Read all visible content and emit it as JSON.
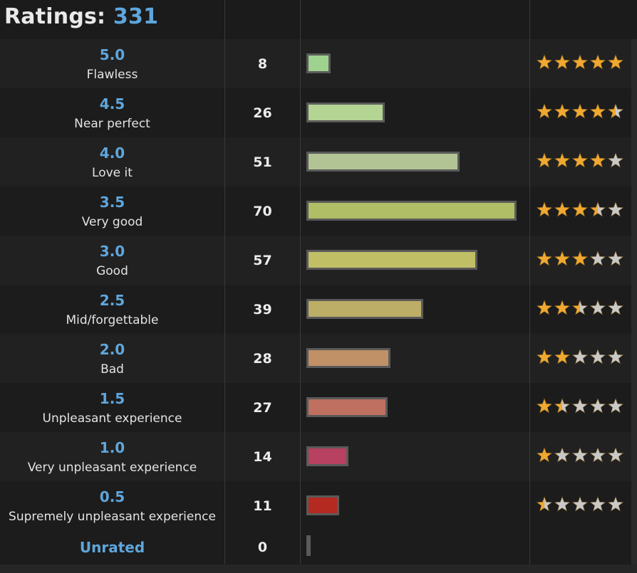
{
  "header": {
    "label": "Ratings:",
    "total": "331"
  },
  "rows": [
    {
      "rating": "5.0",
      "desc": "Flawless",
      "count": "8",
      "stars": 5.0,
      "color": "#9fd28f"
    },
    {
      "rating": "4.5",
      "desc": "Near perfect",
      "count": "26",
      "stars": 4.5,
      "color": "#b3d493"
    },
    {
      "rating": "4.0",
      "desc": "Love it",
      "count": "51",
      "stars": 4.0,
      "color": "#b2c493"
    },
    {
      "rating": "3.5",
      "desc": "Very good",
      "count": "70",
      "stars": 3.5,
      "color": "#b0be66"
    },
    {
      "rating": "3.0",
      "desc": "Good",
      "count": "57",
      "stars": 3.0,
      "color": "#c1bf66"
    },
    {
      "rating": "2.5",
      "desc": "Mid/forgettable",
      "count": "39",
      "stars": 2.5,
      "color": "#bcae66"
    },
    {
      "rating": "2.0",
      "desc": "Bad",
      "count": "28",
      "stars": 2.0,
      "color": "#c09066"
    },
    {
      "rating": "1.5",
      "desc": "Unpleasant experience",
      "count": "27",
      "stars": 1.5,
      "color": "#c07060"
    },
    {
      "rating": "1.0",
      "desc": "Very unpleasant experience",
      "count": "14",
      "stars": 1.0,
      "color": "#b84060"
    },
    {
      "rating": "0.5",
      "desc": "Supremely unpleasant experience",
      "count": "11",
      "stars": 0.5,
      "color": "#b52a20"
    }
  ],
  "unrated": {
    "label": "Unrated",
    "count": "0",
    "color": "#5a5a5a"
  },
  "chart_data": {
    "type": "bar",
    "orientation": "horizontal",
    "title": "Ratings: 331",
    "categories": [
      "5.0",
      "4.5",
      "4.0",
      "3.5",
      "3.0",
      "2.5",
      "2.0",
      "1.5",
      "1.0",
      "0.5",
      "Unrated"
    ],
    "values": [
      8,
      26,
      51,
      70,
      57,
      39,
      28,
      27,
      14,
      11,
      0
    ],
    "xlim": [
      0,
      70
    ]
  },
  "colors": {
    "accent": "#5fa6dc",
    "star_full": "#f0a830",
    "star_empty": "#c9c9c9"
  }
}
